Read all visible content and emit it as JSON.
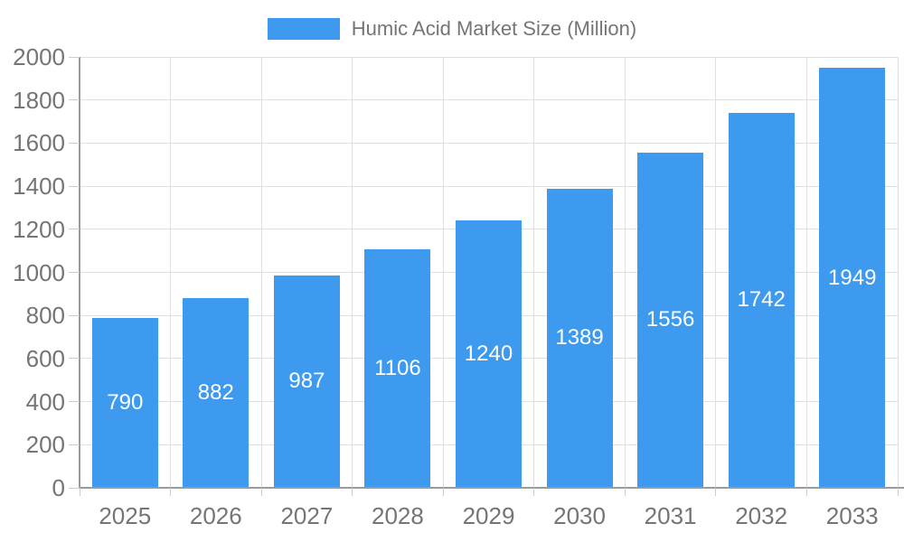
{
  "chart_data": {
    "type": "bar",
    "legend_label": "Humic Acid Market Size (Million)",
    "series_name": "Humic Acid Market Size (Million)",
    "categories": [
      "2025",
      "2026",
      "2027",
      "2028",
      "2029",
      "2030",
      "2031",
      "2032",
      "2033"
    ],
    "values": [
      790,
      882,
      987,
      1106,
      1240,
      1389,
      1556,
      1742,
      1949
    ],
    "xlabel": "",
    "ylabel": "",
    "ylim": [
      0,
      2000
    ],
    "ytick_step": 200,
    "grid": true,
    "legend_position": "top-center",
    "value_labels": "inside-center",
    "colors": {
      "bar": "#3d9aee",
      "bar_label": "#ffffff",
      "axis_text": "#757575",
      "grid_line": "#e0e0e0",
      "axis_line": "#9a9a9a",
      "tick_line": "#cccccc",
      "background": "#ffffff"
    }
  }
}
